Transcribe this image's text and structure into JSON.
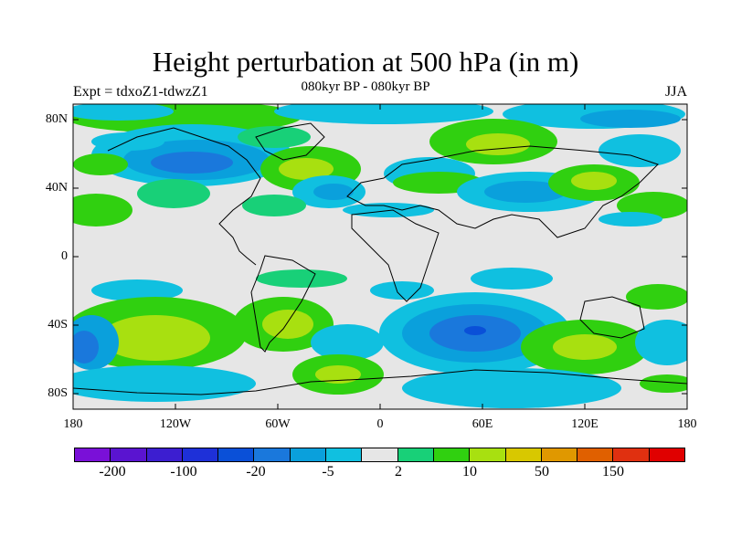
{
  "title": "Height perturbation at 500 hPa (in m)",
  "subtitle": "080kyr BP - 080kyr BP",
  "left_label": "Expt = tdxoZ1-tdwzZ1",
  "right_label": "JJA",
  "lat_labels": [
    "80N",
    "40N",
    "0",
    "40S",
    "80S"
  ],
  "lon_labels": [
    "180",
    "120W",
    "60W",
    "0",
    "60E",
    "120E",
    "180"
  ],
  "colorbar": {
    "colors": [
      "#7a10d8",
      "#5a14d0",
      "#3c1ed0",
      "#1e30d8",
      "#0a50d8",
      "#1a78dc",
      "#0aa0dc",
      "#10c0e0",
      "#e6e6e6",
      "#18d078",
      "#30d010",
      "#a8e010",
      "#d8c800",
      "#e09800",
      "#e06000",
      "#e03010",
      "#e00000"
    ],
    "labels": [
      "-200",
      "-100",
      "-20",
      "-5",
      "2",
      "10",
      "50",
      "150"
    ]
  },
  "colors": {
    "ocean_background": "#e6e6e6",
    "coastline": "#000000"
  }
}
